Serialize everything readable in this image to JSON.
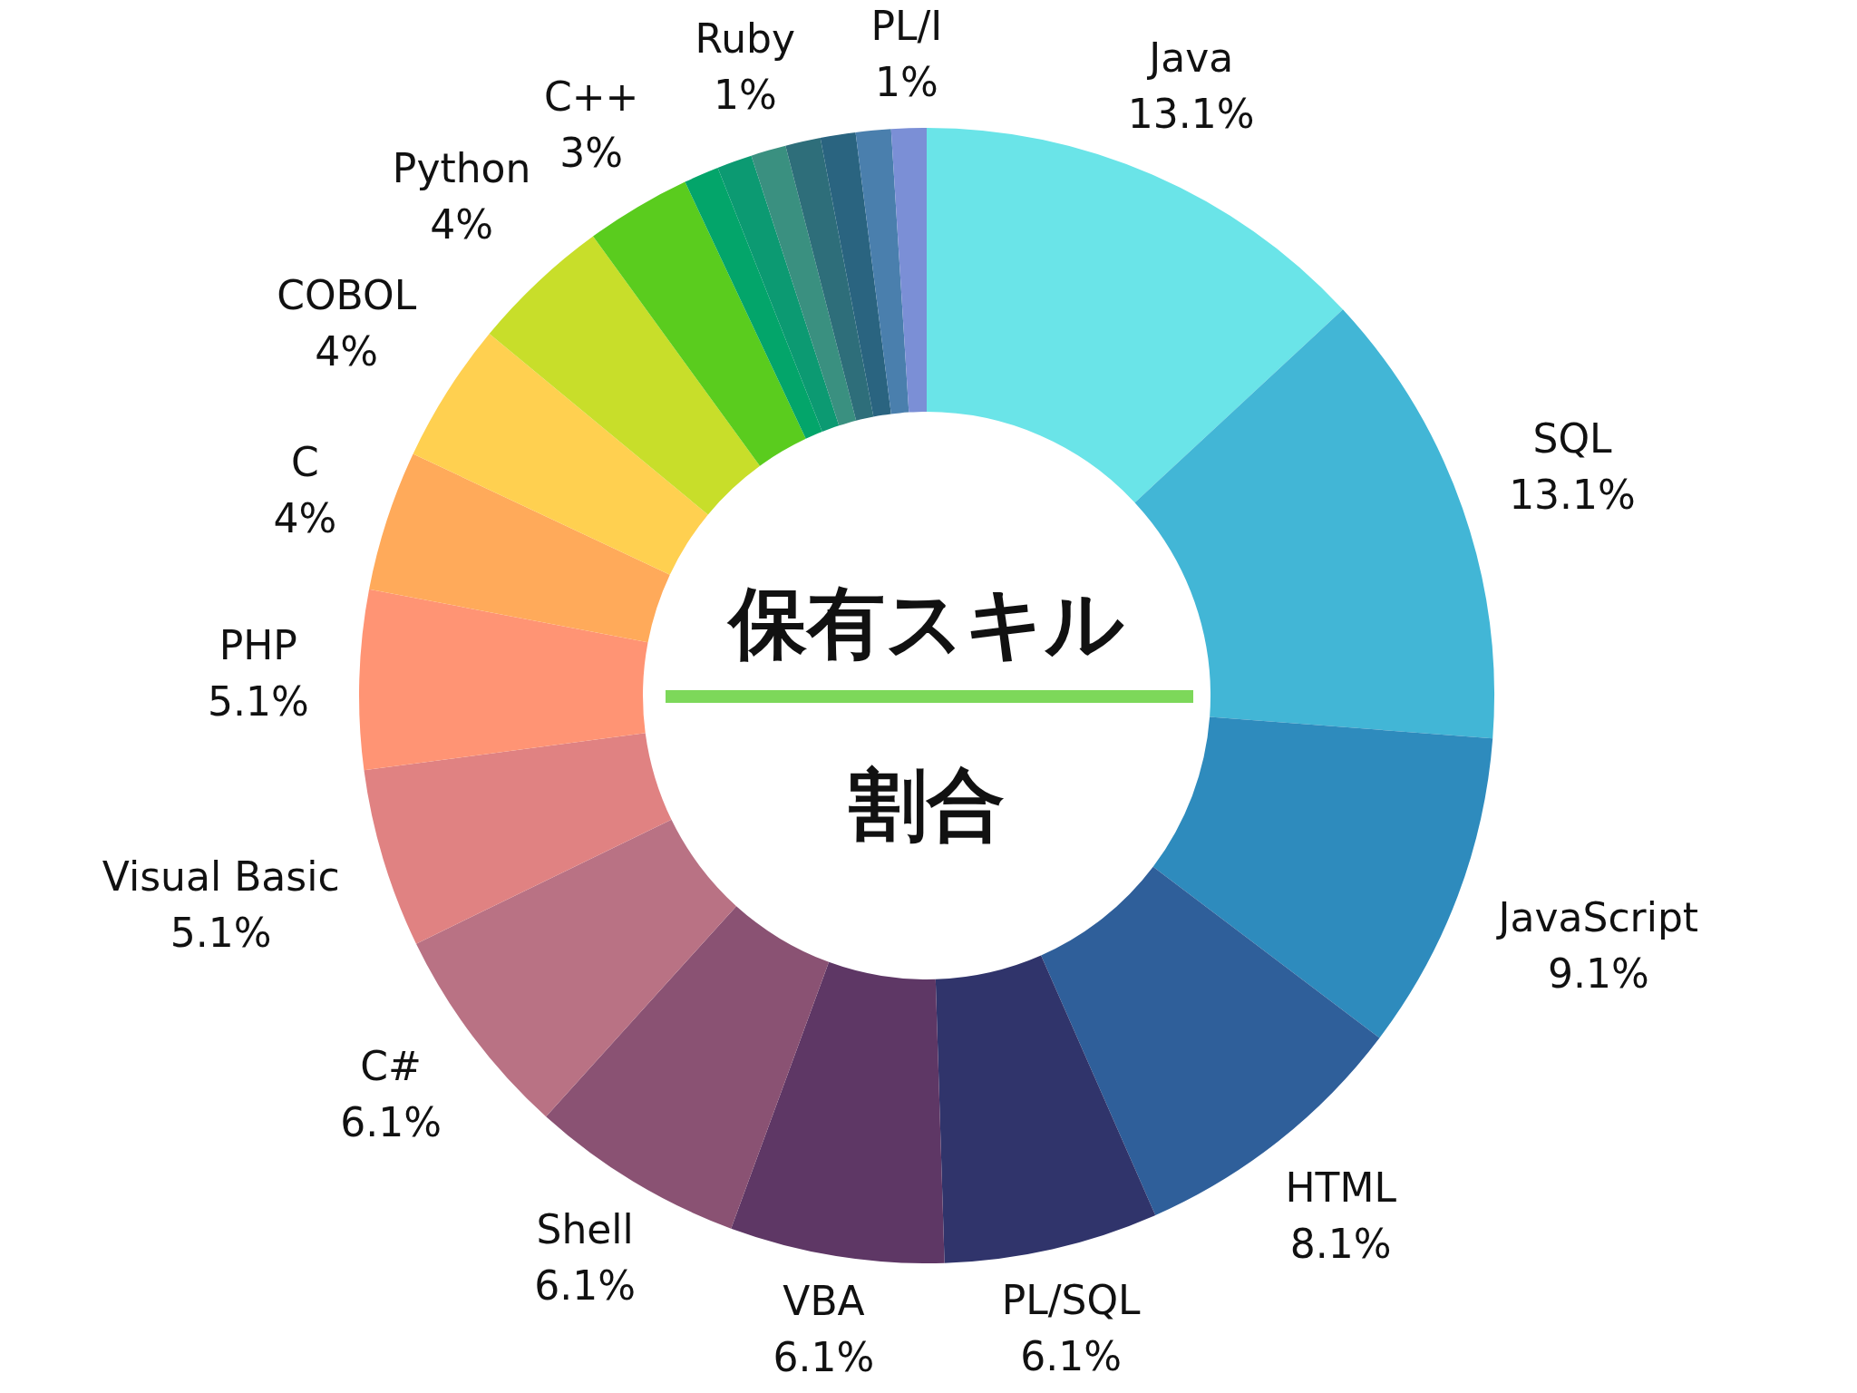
{
  "chart_data": {
    "type": "donut",
    "title": "保有スキル",
    "subtitle": "割合",
    "categories": [
      "Java",
      "SQL",
      "JavaScript",
      "HTML",
      "PL/SQL",
      "VBA",
      "Shell",
      "C#",
      "Visual Basic",
      "PHP",
      "C",
      "COBOL",
      "Python",
      "C++",
      null,
      null,
      "Ruby",
      null,
      null,
      null,
      "PL/I"
    ],
    "values": [
      13.1,
      13.1,
      9.1,
      8.1,
      6.1,
      6.1,
      6.1,
      6.1,
      5.1,
      5.1,
      4,
      4,
      4,
      3,
      1,
      1,
      1,
      1,
      1,
      1,
      1
    ],
    "value_labels": [
      "13.1%",
      "13.1%",
      "9.1%",
      "8.1%",
      "6.1%",
      "6.1%",
      "6.1%",
      "6.1%",
      "5.1%",
      "5.1%",
      "4%",
      "4%",
      "4%",
      "3%",
      null,
      null,
      "1%",
      null,
      null,
      null,
      "1%"
    ],
    "colors": [
      "#6ae4e8",
      "#42b6d6",
      "#2e8bbd",
      "#2f5f9a",
      "#30346b",
      "#5e3765",
      "#8a5273",
      "#b97284",
      "#e08282",
      "#ff9474",
      "#ffaa5a",
      "#ffd050",
      "#c8de2a",
      "#5acc1e",
      "#03a56a",
      "#0c9a72",
      "#3a9080",
      "#2e6e7a",
      "#2a6480",
      "#4a7fad",
      "#7b8fd6"
    ],
    "legend": false
  }
}
